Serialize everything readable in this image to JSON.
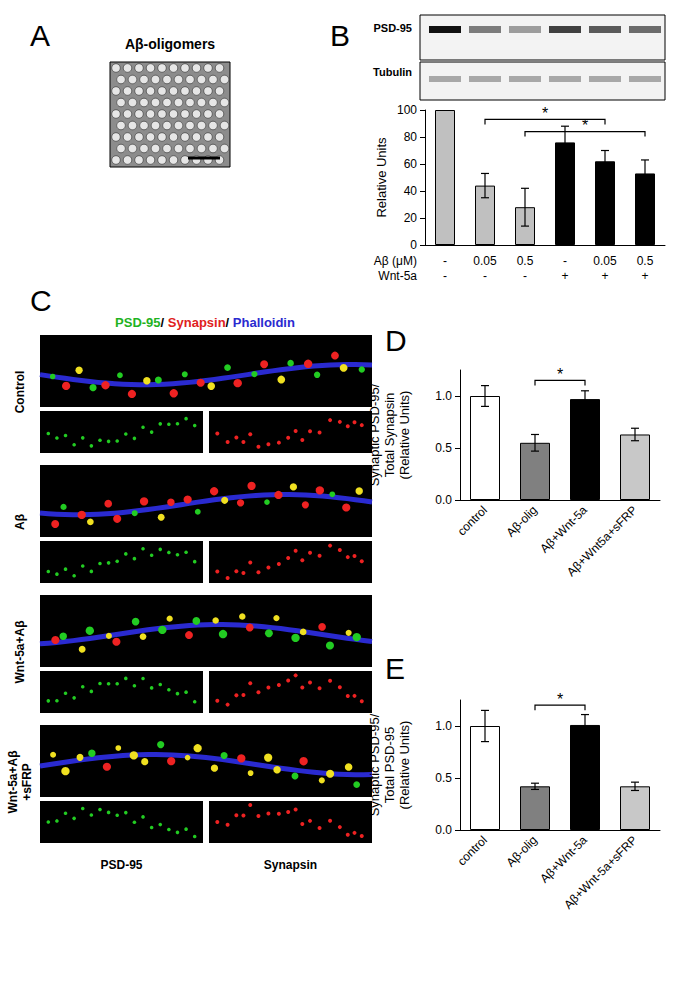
{
  "panels": {
    "A": {
      "letter": "A",
      "title": "Aβ-oligomers"
    },
    "B": {
      "letter": "B",
      "blot_labels": [
        "PSD-95",
        "Tubulin"
      ]
    },
    "C": {
      "letter": "C",
      "title_parts": [
        {
          "text": "PSD-95",
          "color": "#1fb31f"
        },
        {
          "text": "/ ",
          "color": "#000000"
        },
        {
          "text": "Synapsin",
          "color": "#e02020"
        },
        {
          "text": "/ ",
          "color": "#000000"
        },
        {
          "text": "Phalloidin",
          "color": "#2a2ad0"
        }
      ],
      "rows": [
        "Control",
        "Aβ",
        "Wnt-5a+Aβ",
        "Wnt-5a+Aβ\n+sFRP"
      ],
      "column_labels": [
        "PSD-95",
        "Synapsin"
      ]
    },
    "D": {
      "letter": "D"
    },
    "E": {
      "letter": "E"
    }
  },
  "chart_data": [
    {
      "panel": "B",
      "type": "bar",
      "ylabel": "Relative Units",
      "category_rows": [
        {
          "label": "Aβ (μM)",
          "values": [
            "-",
            "0.05",
            "0.5",
            "-",
            "0.05",
            "0.5"
          ]
        },
        {
          "label": "Wnt-5a",
          "values": [
            "-",
            "-",
            "-",
            "+",
            "+",
            "+"
          ]
        }
      ],
      "values": [
        100,
        44,
        28,
        76,
        62,
        53
      ],
      "errors": [
        null,
        9,
        14,
        12,
        8,
        10
      ],
      "colors": [
        "#c0c0c0",
        "#c0c0c0",
        "#c0c0c0",
        "#000000",
        "#000000",
        "#000000"
      ],
      "ylim": [
        0,
        100
      ],
      "yticks": [
        0,
        20,
        40,
        60,
        80,
        100
      ],
      "grid": false,
      "significance": [
        {
          "from": 1,
          "to": 4,
          "y": 93,
          "label": "*"
        },
        {
          "from": 2,
          "to": 5,
          "y": 84,
          "label": "*"
        }
      ]
    },
    {
      "panel": "D",
      "type": "bar",
      "ylabel": "Synaptic PSD-95/\nTotal Synapsin\n(Relative Units)",
      "categories": [
        "control",
        "Aβ-olig",
        "Aβ+Wnt-5a",
        "Aβ+Wnt5a+sFRP"
      ],
      "values": [
        1.0,
        0.55,
        0.97,
        0.63
      ],
      "errors": [
        0.1,
        0.08,
        0.08,
        0.06
      ],
      "colors": [
        "#ffffff",
        "#808080",
        "#000000",
        "#c8c8c8"
      ],
      "ylim": [
        0,
        1.25
      ],
      "yticks": [
        {
          "value": 0,
          "label": "0.0"
        },
        {
          "value": 0.5,
          "label": "0.5"
        },
        {
          "value": 1,
          "label": "1.0"
        }
      ],
      "grid": false,
      "significance": [
        {
          "from": 1,
          "to": 2,
          "y": 1.15,
          "label": "*"
        }
      ]
    },
    {
      "panel": "E",
      "type": "bar",
      "ylabel": "Synaptic PSD-95/\nTotal PSD-95\n(Relative Units)",
      "categories": [
        "control",
        "Aβ-olig",
        "Aβ+Wnt-5a",
        "Aβ+Wnt-5a+sFRP"
      ],
      "values": [
        1.0,
        0.42,
        1.01,
        0.42
      ],
      "errors": [
        0.15,
        0.03,
        0.1,
        0.04
      ],
      "colors": [
        "#ffffff",
        "#808080",
        "#000000",
        "#c8c8c8"
      ],
      "ylim": [
        0,
        1.25
      ],
      "yticks": [
        {
          "value": 0,
          "label": "0.0"
        },
        {
          "value": 0.5,
          "label": "0.5"
        },
        {
          "value": 1,
          "label": "1.0"
        }
      ],
      "grid": false,
      "significance": [
        {
          "from": 1,
          "to": 2,
          "y": 1.2,
          "label": "*"
        }
      ]
    }
  ]
}
